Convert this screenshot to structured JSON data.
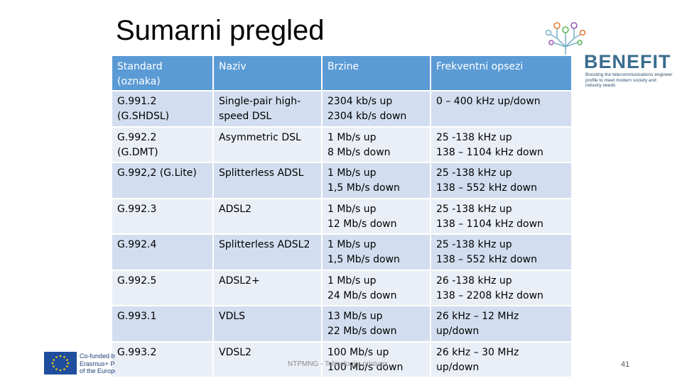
{
  "slide": {
    "title": "Sumarni pregled",
    "footer": "NTPMNG - Tehnologije pristupa",
    "page_number": "41"
  },
  "logo": {
    "name": "BENEFIT",
    "tagline": "Boosting the telecommunications engineer profile to meet modern society and industry needs",
    "icon": "circuit-tree-icon",
    "colors": {
      "text": "#3a6e8f",
      "nodes": [
        "#e07b39",
        "#7db3c9",
        "#9b59b6",
        "#5cb85c"
      ]
    }
  },
  "eu_logo": {
    "text_lines": [
      "Co-funded by the",
      "Erasmus+ Programme",
      "of the European Union"
    ],
    "icon": "eu-flag-icon"
  },
  "table": {
    "headers": [
      "Standard (oznaka)",
      "Naziv",
      "Brzine",
      "Frekventni opsezi"
    ],
    "header_lines": [
      [
        "Standard",
        "(oznaka)"
      ],
      [
        "Naziv"
      ],
      [
        "Brzine"
      ],
      [
        "Frekventni opsezi"
      ]
    ],
    "rows": [
      [
        [
          "G.991.2",
          "(G.SHDSL)"
        ],
        [
          "Single-pair high-",
          "speed DSL"
        ],
        [
          "2304 kb/s up",
          "2304 kb/s down"
        ],
        [
          "0 – 400 kHz up/down"
        ]
      ],
      [
        [
          "G.992.2",
          "(G.DMT)"
        ],
        [
          "Asymmetric DSL"
        ],
        [
          "1 Mb/s up",
          "8 Mb/s down"
        ],
        [
          "25 -138 kHz up",
          "138 – 1104 kHz down"
        ]
      ],
      [
        [
          "G.992,2 (G.Lite)"
        ],
        [
          "Splitterless ADSL"
        ],
        [
          "1 Mb/s up",
          "1,5 Mb/s down"
        ],
        [
          "25 -138 kHz up",
          "138 – 552 kHz down"
        ]
      ],
      [
        [
          "G.992.3"
        ],
        [
          "ADSL2"
        ],
        [
          "1 Mb/s up",
          "12 Mb/s down"
        ],
        [
          "25 -138 kHz up",
          "138 – 1104 kHz down"
        ]
      ],
      [
        [
          "G.992.4"
        ],
        [
          "Splitterless ADSL2"
        ],
        [
          "1 Mb/s up",
          "1,5 Mb/s down"
        ],
        [
          "25 -138 kHz up",
          "138 – 552 kHz down"
        ]
      ],
      [
        [
          "G.992.5"
        ],
        [
          "ADSL2+"
        ],
        [
          "1 Mb/s up",
          "24 Mb/s down"
        ],
        [
          "26 -138 kHz up",
          "138 – 2208 kHz down"
        ]
      ],
      [
        [
          "G.993.1"
        ],
        [
          "VDLS"
        ],
        [
          "13 Mb/s up",
          "22 Mb/s down"
        ],
        [
          "26 kHz – 12 MHz",
          "up/down"
        ]
      ],
      [
        [
          "G.993.2"
        ],
        [
          "VDSL2"
        ],
        [
          "100 Mb/s up",
          "100 Mb/s down"
        ],
        [
          "26 kHz – 30 MHz",
          "up/down"
        ]
      ]
    ],
    "colors": {
      "header_bg": "#5b9bd5",
      "row_odd": "#d2deef",
      "row_even": "#eaeff7"
    }
  }
}
